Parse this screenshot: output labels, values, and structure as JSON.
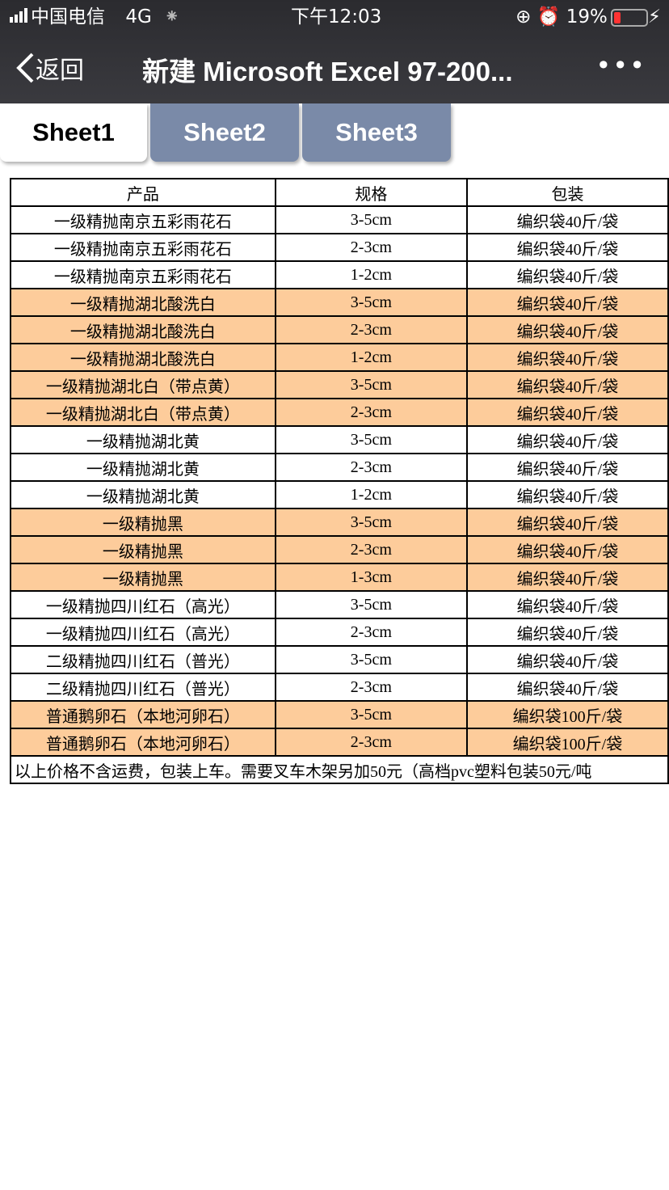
{
  "status_bar": {
    "carrier": "中国电信",
    "network": "4G",
    "time": "下午12:03",
    "battery": "19%"
  },
  "nav": {
    "back_label": "返回",
    "title": "新建 Microsoft Excel 97-200...",
    "more_label": "•••"
  },
  "tabs": [
    {
      "label": "Sheet1",
      "active": true
    },
    {
      "label": "Sheet2",
      "active": false
    },
    {
      "label": "Sheet3",
      "active": false
    }
  ],
  "colors": {
    "highlight": "#fdcc9b",
    "tab_inactive": "#7a8aa8"
  },
  "table": {
    "headers": [
      "产品",
      "规格",
      "包装"
    ],
    "rows": [
      {
        "cells": [
          "一级精抛南京五彩雨花石",
          "3-5cm",
          "编织袋40斤/袋"
        ],
        "highlight": false
      },
      {
        "cells": [
          "一级精抛南京五彩雨花石",
          "2-3cm",
          "编织袋40斤/袋"
        ],
        "highlight": false
      },
      {
        "cells": [
          "一级精抛南京五彩雨花石",
          "1-2cm",
          "编织袋40斤/袋"
        ],
        "highlight": false
      },
      {
        "cells": [
          "一级精抛湖北酸洗白",
          "3-5cm",
          "编织袋40斤/袋"
        ],
        "highlight": true
      },
      {
        "cells": [
          "一级精抛湖北酸洗白",
          "2-3cm",
          "编织袋40斤/袋"
        ],
        "highlight": true
      },
      {
        "cells": [
          "一级精抛湖北酸洗白",
          "1-2cm",
          "编织袋40斤/袋"
        ],
        "highlight": true
      },
      {
        "cells": [
          "一级精抛湖北白（带点黄）",
          "3-5cm",
          "编织袋40斤/袋"
        ],
        "highlight": true
      },
      {
        "cells": [
          "一级精抛湖北白（带点黄）",
          "2-3cm",
          "编织袋40斤/袋"
        ],
        "highlight": true
      },
      {
        "cells": [
          "一级精抛湖北黄",
          "3-5cm",
          "编织袋40斤/袋"
        ],
        "highlight": false
      },
      {
        "cells": [
          "一级精抛湖北黄",
          "2-3cm",
          "编织袋40斤/袋"
        ],
        "highlight": false
      },
      {
        "cells": [
          "一级精抛湖北黄",
          "1-2cm",
          "编织袋40斤/袋"
        ],
        "highlight": false
      },
      {
        "cells": [
          "一级精抛黑",
          "3-5cm",
          "编织袋40斤/袋"
        ],
        "highlight": true
      },
      {
        "cells": [
          "一级精抛黑",
          "2-3cm",
          "编织袋40斤/袋"
        ],
        "highlight": true
      },
      {
        "cells": [
          "一级精抛黑",
          "1-3cm",
          "编织袋40斤/袋"
        ],
        "highlight": true
      },
      {
        "cells": [
          "一级精抛四川红石（高光）",
          "3-5cm",
          "编织袋40斤/袋"
        ],
        "highlight": false
      },
      {
        "cells": [
          "一级精抛四川红石（高光）",
          "2-3cm",
          "编织袋40斤/袋"
        ],
        "highlight": false
      },
      {
        "cells": [
          "二级精抛四川红石（普光）",
          "3-5cm",
          "编织袋40斤/袋"
        ],
        "highlight": false
      },
      {
        "cells": [
          "二级精抛四川红石（普光）",
          "2-3cm",
          "编织袋40斤/袋"
        ],
        "highlight": false
      },
      {
        "cells": [
          "普通鹅卵石（本地河卵石）",
          "3-5cm",
          "编织袋100斤/袋"
        ],
        "highlight": true
      },
      {
        "cells": [
          "普通鹅卵石（本地河卵石）",
          "2-3cm",
          "编织袋100斤/袋"
        ],
        "highlight": true
      }
    ],
    "note": "以上价格不含运费，包装上车。需要叉车木架另加50元（高档pvc塑料包装50元/吨"
  }
}
